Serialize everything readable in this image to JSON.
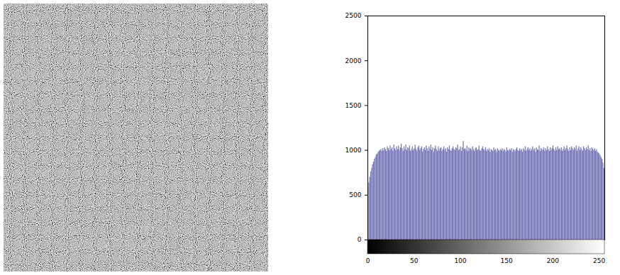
{
  "chart_data": {
    "type": "histogram",
    "bins": [
      0,
      1,
      2,
      3,
      4,
      5,
      6,
      7,
      8,
      9,
      10,
      11,
      12,
      13,
      14,
      15,
      16,
      17,
      18,
      19,
      20,
      21,
      22,
      23,
      24,
      25,
      26,
      27,
      28,
      29,
      30,
      31,
      32,
      33,
      34,
      35,
      36,
      37,
      38,
      39,
      40,
      41,
      42,
      43,
      44,
      45,
      46,
      47,
      48,
      49,
      50,
      51,
      52,
      53,
      54,
      55,
      56,
      57,
      58,
      59,
      60,
      61,
      62,
      63,
      64,
      65,
      66,
      67,
      68,
      69,
      70,
      71,
      72,
      73,
      74,
      75,
      76,
      77,
      78,
      79,
      80,
      81,
      82,
      83,
      84,
      85,
      86,
      87,
      88,
      89,
      90,
      91,
      92,
      93,
      94,
      95,
      96,
      97,
      98,
      99,
      100,
      101,
      102,
      103,
      104,
      105,
      106,
      107,
      108,
      109,
      110,
      111,
      112,
      113,
      114,
      115,
      116,
      117,
      118,
      119,
      120,
      121,
      122,
      123,
      124,
      125,
      126,
      127,
      128,
      129,
      130,
      131,
      132,
      133,
      134,
      135,
      136,
      137,
      138,
      139,
      140,
      141,
      142,
      143,
      144,
      145,
      146,
      147,
      148,
      149,
      150,
      151,
      152,
      153,
      154,
      155,
      156,
      157,
      158,
      159,
      160,
      161,
      162,
      163,
      164,
      165,
      166,
      167,
      168,
      169,
      170,
      171,
      172,
      173,
      174,
      175,
      176,
      177,
      178,
      179,
      180,
      181,
      182,
      183,
      184,
      185,
      186,
      187,
      188,
      189,
      190,
      191,
      192,
      193,
      194,
      195,
      196,
      197,
      198,
      199,
      200,
      201,
      202,
      203,
      204,
      205,
      206,
      207,
      208,
      209,
      210,
      211,
      212,
      213,
      214,
      215,
      216,
      217,
      218,
      219,
      220,
      221,
      222,
      223,
      224,
      225,
      226,
      227,
      228,
      229,
      230,
      231,
      232,
      233,
      234,
      235,
      236,
      237,
      238,
      239,
      240,
      241,
      242,
      243,
      244,
      245,
      246,
      247,
      248,
      249,
      250,
      251,
      252,
      253,
      254,
      255,
      256
    ],
    "values": [
      560,
      640,
      700,
      760,
      800,
      840,
      870,
      900,
      920,
      950,
      960,
      980,
      990,
      1000,
      1010,
      990,
      1020,
      1000,
      1030,
      1010,
      990,
      1040,
      1020,
      1000,
      1050,
      1010,
      1030,
      990,
      1060,
      1020,
      1000,
      1040,
      1010,
      1050,
      1000,
      1030,
      1070,
      1020,
      990,
      1040,
      1010,
      1060,
      1000,
      1030,
      1020,
      1050,
      990,
      1010,
      1040,
      1000,
      1020,
      1060,
      1010,
      990,
      1030,
      1050,
      1000,
      1020,
      1040,
      980,
      1010,
      1030,
      1000,
      1050,
      1020,
      990,
      1040,
      1010,
      1060,
      1000,
      1030,
      980,
      1020,
      1050,
      1010,
      990,
      1040,
      1000,
      1020,
      1030,
      990,
      1010,
      1040,
      1000,
      1020,
      980,
      1030,
      1010,
      1050,
      1000,
      990,
      1020,
      1040,
      1010,
      1000,
      1030,
      1020,
      1060,
      1000,
      1010,
      1040,
      990,
      1030,
      1100,
      1010,
      1020,
      1000,
      1050,
      990,
      1030,
      1010,
      1020,
      1000,
      1040,
      1010,
      990,
      1020,
      1030,
      1000,
      1010,
      1050,
      1000,
      990,
      1020,
      1040,
      1010,
      1000,
      1030,
      990,
      1010,
      1000,
      1020,
      980,
      1010,
      1000,
      990,
      1030,
      1000,
      1010,
      980,
      1020,
      1000,
      990,
      1010,
      1000,
      1020,
      990,
      1010,
      1000,
      980,
      1030,
      1000,
      990,
      1010,
      1000,
      1020,
      980,
      1010,
      1000,
      990,
      1010,
      1030,
      1000,
      990,
      1020,
      1000,
      1010,
      980,
      1020,
      1000,
      1040,
      990,
      1010,
      1030,
      1000,
      1020,
      990,
      1010,
      1040,
      1000,
      1020,
      980,
      1030,
      1010,
      1000,
      1050,
      990,
      1020,
      1010,
      1000,
      1030,
      990,
      1020,
      1000,
      1040,
      1010,
      990,
      1030,
      1000,
      1020,
      1050,
      1010,
      990,
      1030,
      1000,
      1040,
      1010,
      1020,
      1000,
      1030,
      990,
      1010,
      1040,
      1000,
      1020,
      1050,
      1010,
      990,
      1030,
      1000,
      1040,
      1020,
      1000,
      1030,
      1010,
      1050,
      990,
      1020,
      1040,
      1000,
      1030,
      1010,
      990,
      1040,
      1020,
      1000,
      1030,
      1010,
      1050,
      1000,
      1020,
      990,
      1030,
      1010,
      1000,
      1020,
      990,
      1010,
      980,
      970,
      960,
      940,
      920,
      900,
      860,
      800
    ],
    "color": "#7b7bbb",
    "xlim": [
      0,
      256
    ],
    "xticks": [
      0,
      50,
      100,
      150,
      200,
      250
    ],
    "ylim": [
      0,
      2500
    ],
    "yticks": [
      0,
      500,
      1000,
      1500,
      2000,
      2500
    ]
  }
}
